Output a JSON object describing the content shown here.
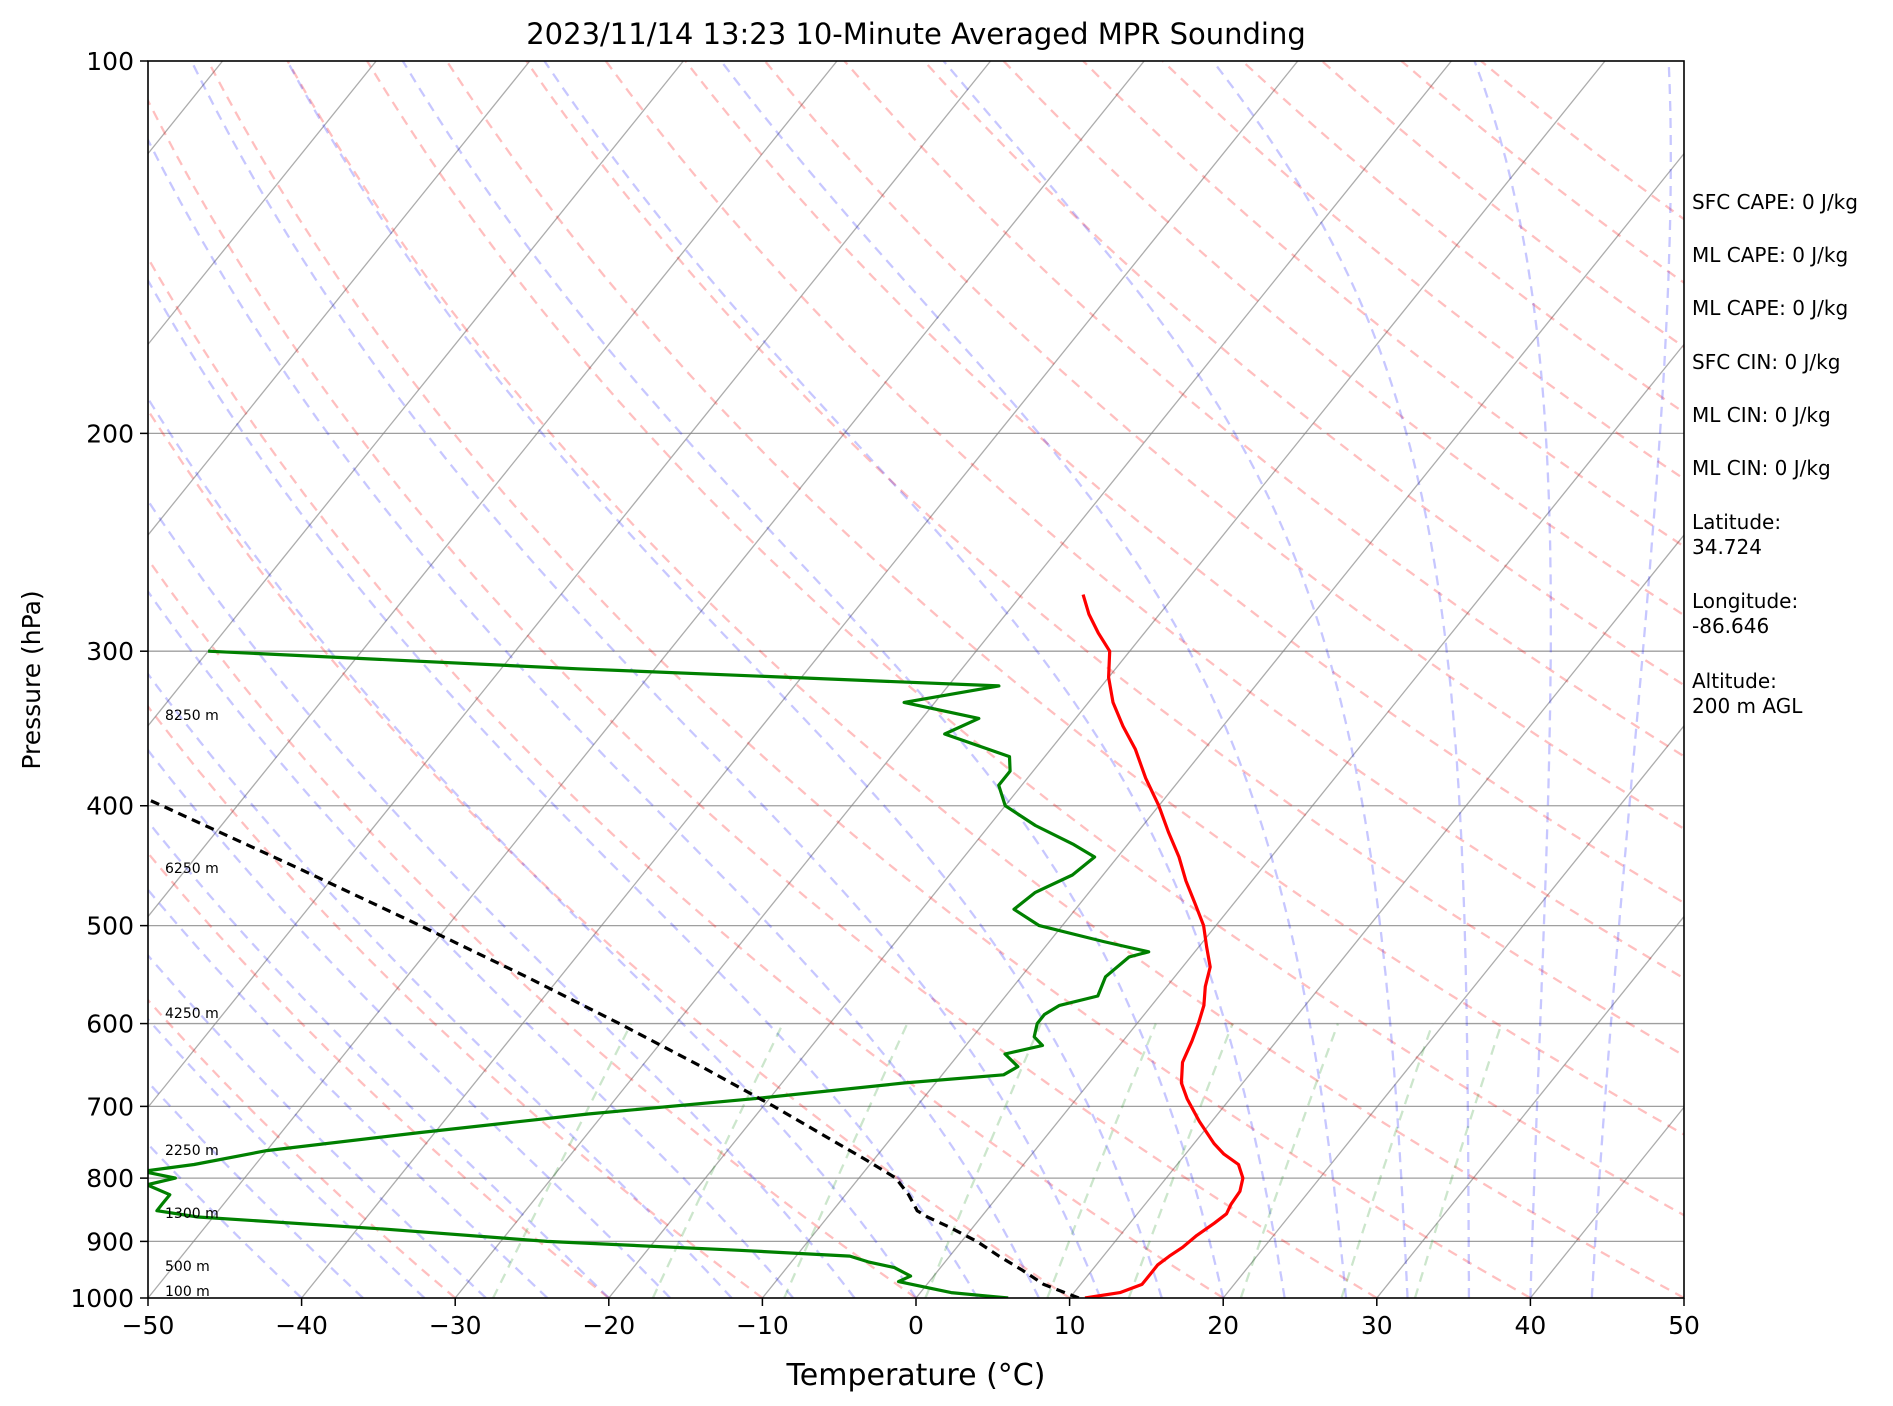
{
  "chart_data": {
    "type": "line",
    "title": "2023/11/14 13:23 10-Minute Averaged MPR Sounding",
    "xlabel": "Temperature (°C)",
    "ylabel": "Pressure (hPa)",
    "xlim": [
      -50,
      50
    ],
    "ylim": [
      1000,
      100
    ],
    "y_scale": "log",
    "skew": "skew-T log-P",
    "grid": true,
    "x_ticks": [
      "−50",
      "−40",
      "−30",
      "−20",
      "−10",
      "0",
      "10",
      "20",
      "30",
      "40",
      "50"
    ],
    "y_ticks": [
      "100",
      "200",
      "300",
      "400",
      "500",
      "600",
      "700",
      "800",
      "900",
      "1000"
    ],
    "series": [
      {
        "color": "#ff0000",
        "pressure": [
          1000,
          990,
          975,
          960,
          940,
          925,
          910,
          890,
          870,
          855,
          840,
          820,
          800,
          780,
          765,
          750,
          720,
          690,
          670,
          645,
          620,
          600,
          580,
          560,
          540,
          520,
          500,
          480,
          460,
          440,
          420,
          400,
          380,
          360,
          345,
          330,
          315,
          300,
          290,
          280,
          270
        ],
        "temperature": [
          11,
          13,
          14,
          14,
          14,
          14.3,
          14.7,
          15.0,
          15.5,
          15.8,
          15.6,
          15.5,
          15.0,
          14.0,
          12.5,
          11.3,
          9.2,
          7.2,
          6.0,
          5.0,
          4.5,
          4.0,
          3.4,
          2.5,
          1.8,
          0.5,
          -0.8,
          -2.5,
          -4.3,
          -6.0,
          -8.0,
          -10.0,
          -12.3,
          -14.5,
          -16.5,
          -18.4,
          -20.0,
          -21.3,
          -23.0,
          -24.6,
          -26.0
        ]
      },
      {
        "color": "#008000",
        "pressure": [
          1000,
          995,
          990,
          980,
          970,
          960,
          945,
          935,
          925,
          915,
          900,
          880,
          860,
          850,
          840,
          825,
          810,
          800,
          790,
          780,
          760,
          735,
          710,
          690,
          670,
          660,
          650,
          635,
          625,
          615,
          600,
          590,
          580,
          570,
          550,
          530,
          525,
          515,
          500,
          485,
          470,
          455,
          440,
          430,
          415,
          400,
          385,
          375,
          365,
          350,
          340,
          330,
          320,
          310,
          300
        ],
        "dewpoint": [
          6.0,
          4.0,
          2.0,
          0.0,
          -2.0,
          -1.5,
          -3.0,
          -5.0,
          -6.5,
          -14.0,
          -27.0,
          -38.0,
          -51.0,
          -54.0,
          -54.0,
          -54.0,
          -56.0,
          -54.5,
          -57.0,
          -54.0,
          -50.0,
          -41.0,
          -31.0,
          -21.0,
          -12.0,
          -6.0,
          -5.5,
          -7.0,
          -5.0,
          -6.0,
          -6.5,
          -6.5,
          -6.0,
          -4.0,
          -4.5,
          -4.0,
          -3.0,
          -6.5,
          -11.5,
          -14.0,
          -13.5,
          -12.0,
          -11.5,
          -13.5,
          -17.0,
          -20.0,
          -21.5,
          -21.5,
          -22.3,
          -27.7,
          -26.3,
          -32.0,
          -26.7,
          -55.0,
          -80.0
        ]
      },
      {
        "color": "#000000",
        "line_style": "dashed",
        "pressure": [
          1000,
          975,
          950,
          925,
          900,
          875,
          860,
          850,
          825,
          800,
          775,
          750,
          725,
          700,
          650,
          600,
          550,
          500,
          450,
          400,
          350,
          300,
          260
        ],
        "temperature": [
          10.6,
          7.6,
          5.5,
          3.2,
          1.0,
          -1.7,
          -3.5,
          -4.5,
          -5.9,
          -7.6,
          -10.3,
          -13.2,
          -16.2,
          -19.3,
          -26.1,
          -33.7,
          -42.2,
          -51.8,
          -62.6,
          -74.9,
          -89.1,
          -105.6,
          -121.4
        ]
      }
    ],
    "annotations": [
      "8250 m",
      "6250 m",
      "4250 m",
      "2250 m",
      "1300 m",
      "500 m",
      "100 m"
    ],
    "dry_adiabat_color": "#ff0000",
    "moist_adiabat_color": "#0000ff",
    "mixing_ratio_color": "#008000",
    "isotherm_color": "#808080"
  },
  "side_panel": {
    "sfc_cape": "SFC CAPE: 0 J/kg",
    "ml_cape_1": "ML CAPE: 0 J/kg",
    "ml_cape_2": "ML CAPE: 0 J/kg",
    "sfc_cin": "SFC CIN: 0 J/kg",
    "ml_cin_1": "ML CIN: 0 J/kg",
    "ml_cin_2": "ML CIN: 0 J/kg",
    "latitude": "Latitude:\n34.724",
    "longitude": "Longitude:\n-86.646",
    "altitude": "Altitude:\n200 m AGL"
  }
}
